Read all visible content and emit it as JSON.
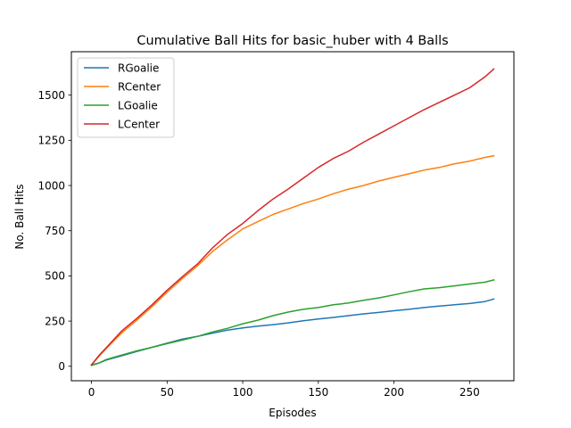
{
  "chart_data": {
    "type": "line",
    "title": "Cumulative Ball Hits for basic_huber with 4 Balls",
    "xlabel": "Episodes",
    "ylabel": "No. Ball Hits",
    "xlim": [
      -13.3,
      279.3
    ],
    "ylim": [
      -80,
      1740
    ],
    "xticks": [
      0,
      50,
      100,
      150,
      200,
      250
    ],
    "xtick_labels": [
      "0",
      "50",
      "100",
      "150",
      "200",
      "250"
    ],
    "yticks": [
      0,
      250,
      500,
      750,
      1000,
      1250,
      1500
    ],
    "ytick_labels": [
      "0",
      "250",
      "500",
      "750",
      "1000",
      "1250",
      "1500"
    ],
    "grid": false,
    "legend_position": "top-left",
    "series": [
      {
        "name": "RGoalie",
        "color": "#1f77b4",
        "x": [
          0,
          5,
          10,
          20,
          30,
          40,
          50,
          60,
          70,
          80,
          90,
          100,
          110,
          120,
          130,
          140,
          150,
          160,
          170,
          180,
          190,
          200,
          210,
          220,
          230,
          240,
          250,
          260,
          266
        ],
        "y": [
          8,
          18,
          35,
          58,
          82,
          105,
          128,
          150,
          165,
          183,
          200,
          212,
          222,
          230,
          240,
          252,
          262,
          270,
          280,
          290,
          298,
          307,
          315,
          325,
          333,
          340,
          347,
          358,
          372
        ]
      },
      {
        "name": "RCenter",
        "color": "#ff7f0e",
        "x": [
          0,
          5,
          10,
          20,
          30,
          40,
          50,
          60,
          70,
          80,
          90,
          100,
          110,
          120,
          130,
          140,
          150,
          160,
          170,
          180,
          190,
          200,
          210,
          220,
          230,
          240,
          250,
          260,
          266
        ],
        "y": [
          8,
          55,
          100,
          185,
          255,
          330,
          410,
          485,
          555,
          635,
          700,
          760,
          800,
          840,
          870,
          900,
          925,
          955,
          980,
          1000,
          1025,
          1045,
          1065,
          1085,
          1100,
          1120,
          1135,
          1155,
          1165
        ]
      },
      {
        "name": "LGoalie",
        "color": "#2ca02c",
        "x": [
          0,
          5,
          10,
          20,
          30,
          40,
          50,
          60,
          70,
          80,
          90,
          100,
          110,
          120,
          130,
          140,
          150,
          160,
          170,
          180,
          190,
          200,
          210,
          220,
          230,
          240,
          250,
          260,
          266
        ],
        "y": [
          5,
          18,
          38,
          62,
          85,
          105,
          125,
          145,
          165,
          190,
          210,
          235,
          255,
          280,
          300,
          315,
          325,
          340,
          350,
          365,
          378,
          395,
          412,
          428,
          435,
          445,
          455,
          465,
          478
        ]
      },
      {
        "name": "LCenter",
        "color": "#d62728",
        "x": [
          0,
          5,
          10,
          20,
          30,
          40,
          50,
          60,
          70,
          80,
          90,
          100,
          110,
          120,
          130,
          140,
          150,
          160,
          170,
          180,
          190,
          200,
          210,
          220,
          230,
          240,
          250,
          260,
          266
        ],
        "y": [
          8,
          60,
          105,
          195,
          265,
          340,
          420,
          495,
          565,
          655,
          730,
          790,
          860,
          925,
          980,
          1040,
          1100,
          1150,
          1190,
          1240,
          1285,
          1330,
          1375,
          1420,
          1460,
          1500,
          1540,
          1600,
          1645
        ]
      }
    ]
  }
}
